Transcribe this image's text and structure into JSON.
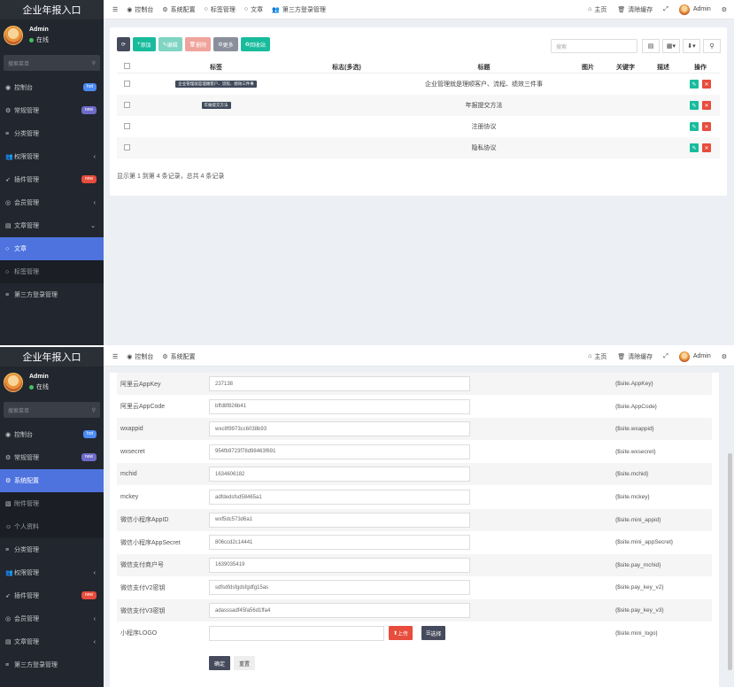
{
  "screen1": {
    "sidebar": {
      "logo": "企业年报入口",
      "user": {
        "name": "Admin",
        "status": "在线"
      },
      "search_placeholder": "搜索菜单",
      "items": [
        {
          "label": "控制台",
          "icon": "dashboard-icon",
          "badge": "hot",
          "badge_color": "#4c8bf5"
        },
        {
          "label": "常规管理",
          "icon": "cogs-icon",
          "badge": "new",
          "badge_color": "#6f6bc9"
        },
        {
          "label": "分类管理",
          "icon": "list-icon"
        },
        {
          "label": "权限管理",
          "icon": "users-icon",
          "chevron": "‹"
        },
        {
          "label": "插件管理",
          "icon": "rocket-icon",
          "badge": "new",
          "badge_color": "#e74c3c"
        },
        {
          "label": "会员管理",
          "icon": "user-circle-icon",
          "chevron": "‹"
        },
        {
          "label": "文章管理",
          "icon": "file-icon",
          "chevron": "⌄"
        },
        {
          "label": "文章",
          "icon": "circle-icon",
          "active": true
        },
        {
          "label": "标签管理",
          "icon": "circle-icon",
          "sub": true
        },
        {
          "label": "第三方登录管理",
          "icon": "list-icon"
        }
      ]
    },
    "topbar": {
      "tabs": [
        {
          "label": "控制台",
          "icon": "dashboard-icon"
        },
        {
          "label": "系统配置",
          "icon": "gear-icon"
        },
        {
          "label": "标签管理",
          "icon": "circle-icon"
        },
        {
          "label": "文章",
          "icon": "circle-icon"
        },
        {
          "label": "第三方登录管理",
          "icon": "users-icon"
        }
      ],
      "right": {
        "home": "主页",
        "clear_cache": "清除缓存",
        "admin": "Admin"
      }
    },
    "toolbar": {
      "refresh": "⟳",
      "add": "添加",
      "edit": "编辑",
      "delete": "删除",
      "more": "更多",
      "recycle": "回收站"
    },
    "table_search_placeholder": "搜索",
    "table": {
      "headers": [
        "标签",
        "标志(多选)",
        "标题",
        "图片",
        "关键字",
        "描述",
        "操作"
      ],
      "rows": [
        {
          "tag": "企业管理就是理顺客户、流程、绩效三件事",
          "title": "企业管理就是理顺客户、流程、绩效三件事"
        },
        {
          "tag": "年报提交方法",
          "title": "年报提交方法"
        },
        {
          "tag": "",
          "title": "注册协议"
        },
        {
          "tag": "",
          "title": "隐私协议"
        }
      ]
    },
    "footer": "显示第 1 到第 4 条记录，总共 4 条记录"
  },
  "screen2": {
    "sidebar": {
      "logo": "企业年报入口",
      "user": {
        "name": "Admin",
        "status": "在线"
      },
      "search_placeholder": "搜索菜单",
      "items": [
        {
          "label": "控制台",
          "icon": "dashboard-icon",
          "badge": "hot",
          "badge_color": "#4c8bf5"
        },
        {
          "label": "常规管理",
          "icon": "cogs-icon",
          "badge": "new",
          "badge_color": "#6f6bc9"
        },
        {
          "label": "系统配置",
          "icon": "gear-icon",
          "active": true
        },
        {
          "label": "附件管理",
          "icon": "image-icon",
          "sub": true
        },
        {
          "label": "个人资料",
          "icon": "user-icon",
          "sub": true
        },
        {
          "label": "分类管理",
          "icon": "list-icon"
        },
        {
          "label": "权限管理",
          "icon": "users-icon",
          "chevron": "‹"
        },
        {
          "label": "插件管理",
          "icon": "rocket-icon",
          "badge": "new",
          "badge_color": "#e74c3c"
        },
        {
          "label": "会员管理",
          "icon": "user-circle-icon",
          "chevron": "‹"
        },
        {
          "label": "文章管理",
          "icon": "file-icon",
          "chevron": "‹"
        },
        {
          "label": "第三方登录管理",
          "icon": "list-icon"
        }
      ]
    },
    "topbar": {
      "tabs": [
        {
          "label": "控制台",
          "icon": "dashboard-icon"
        },
        {
          "label": "系统配置",
          "icon": "gear-icon"
        }
      ],
      "right": {
        "home": "主页",
        "clear_cache": "清除缓存",
        "admin": "Admin"
      }
    },
    "config_rows": [
      {
        "label": "阿里云AppKey",
        "value": "237138",
        "var": "{$site.AppKey}"
      },
      {
        "label": "阿里云AppCode",
        "value": "bffd8f826b41",
        "var": "{$site.AppCode}"
      },
      {
        "label": "wxappid",
        "value": "wxc8f9973cc6038b93",
        "var": "{$site.wxappid}"
      },
      {
        "label": "wxsecret",
        "value": "954fb9723f78d98463f691",
        "var": "{$site.wxsecret}"
      },
      {
        "label": "mchid",
        "value": "1634606182",
        "var": "{$site.mchid}"
      },
      {
        "label": "mckey",
        "value": "adfdedsfsd58465a1",
        "var": "{$site.mckey}"
      },
      {
        "label": "微信小程序AppID",
        "value": "wxf5dc573d6a1",
        "var": "{$site.mini_appid}"
      },
      {
        "label": "微信小程序AppSecret",
        "value": "806ccd2c14441",
        "var": "{$site.mini_appSecret}"
      },
      {
        "label": "微信支付商户号",
        "value": "1639035419",
        "var": "{$site.pay_mchid}"
      },
      {
        "label": "微信支付V2密钥",
        "value": "sdfsdfdsfgdsfgdfg15as",
        "var": "{$site.pay_key_v2}"
      },
      {
        "label": "微信支付V3密钥",
        "value": "adasssadf45fa56d1ffa4",
        "var": "{$site.pay_key_v3}"
      },
      {
        "label": "小程序LOGO",
        "value": "",
        "var": "{$site.mini_logo}"
      }
    ],
    "upload_label": "上传",
    "choose_label": "选择",
    "submit_label": "确定",
    "reset_label": "重置"
  }
}
